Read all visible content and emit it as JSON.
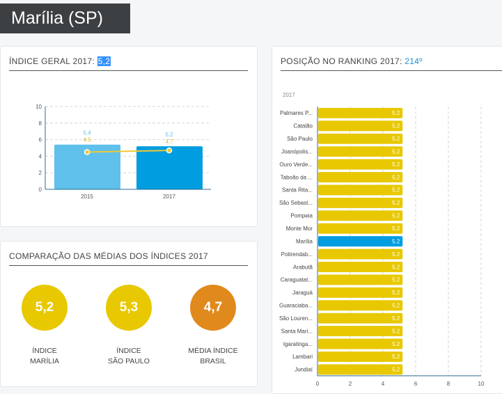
{
  "header": {
    "title": "Marília (SP)"
  },
  "indice_card": {
    "title": "ÍNDICE GERAL 2017: ",
    "value": "5,2"
  },
  "ranking_card": {
    "title": "POSIÇÃO NO RANKING 2017: ",
    "value": "214º"
  },
  "comparacao_card": {
    "title": "COMPARAÇÃO DAS MÉDIAS DOS ÍNDICES 2017",
    "items": [
      {
        "value": "5,2",
        "label1": "ÍNDICE",
        "label2": "MARÍLIA",
        "color": "#e8c800"
      },
      {
        "value": "5,3",
        "label1": "ÍNDICE",
        "label2": "SÃO PAULO",
        "color": "#e8c800"
      },
      {
        "value": "4,7",
        "label1": "MÉDIA ÍNDICE",
        "label2": "BRASIL",
        "color": "#e08a1e"
      }
    ]
  },
  "chart_data": [
    {
      "type": "bar",
      "categories": [
        "2015",
        "2017"
      ],
      "ylim": [
        0,
        10
      ],
      "yticks": [
        "0",
        "2",
        "4",
        "6",
        "8",
        "10"
      ],
      "grid": true,
      "series": [
        {
          "type": "bar",
          "values": [
            5.4,
            5.2
          ],
          "labels": [
            "5.4",
            "5.2"
          ],
          "colors": [
            "#5fc0ec",
            "#009de0"
          ]
        },
        {
          "type": "line",
          "values": [
            4.5,
            4.7
          ],
          "labels": [
            "4.5",
            "4.7"
          ],
          "color": "#f0c832"
        }
      ]
    },
    {
      "type": "bar",
      "orientation": "horizontal",
      "subtitle": "2017",
      "xlim": [
        0,
        10
      ],
      "xticks": [
        "0",
        "2",
        "4",
        "6",
        "8",
        "10"
      ],
      "grid": true,
      "highlight": "Marília",
      "highlight_color": "#009de0",
      "color": "#e8c800",
      "categories": [
        "Palmares P...",
        "Catalão",
        "São Paulo",
        "Joanópolis...",
        "Ouro Verde...",
        "Taboão da ...",
        "Santa Rita...",
        "São Sebast...",
        "Pompeia",
        "Monte Mor",
        "Marília",
        "Potirendab...",
        "Arabutã",
        "Caraguatat...",
        "Jaraguá",
        "Guaraciaba...",
        "São Louren...",
        "Santa Mari...",
        "Igaratinga...",
        "Lambari",
        "Jundiaí"
      ],
      "values": [
        5.2,
        5.2,
        5.2,
        5.2,
        5.2,
        5.2,
        5.2,
        5.2,
        5.2,
        5.2,
        5.2,
        5.2,
        5.2,
        5.2,
        5.2,
        5.2,
        5.2,
        5.2,
        5.2,
        5.2,
        5.2
      ],
      "labels": [
        "5.2",
        "5.2",
        "5.2",
        "5.2",
        "5.2",
        "5.2",
        "5.2",
        "5.2",
        "5.2",
        "5.2",
        "5.2",
        "5.2",
        "5.2",
        "5.2",
        "5.2",
        "5.2",
        "5.2",
        "5.2",
        "5.2",
        "5.2",
        "5.2"
      ]
    }
  ]
}
